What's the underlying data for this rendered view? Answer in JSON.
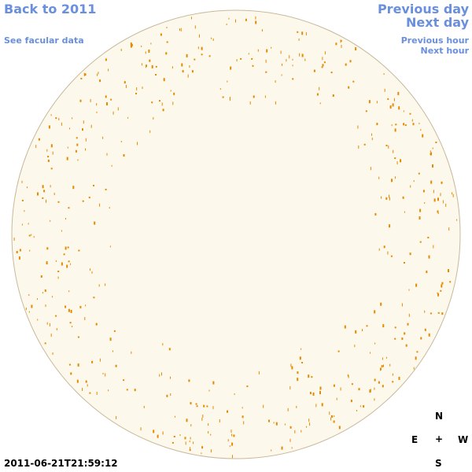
{
  "navigation": {
    "back": "Back to 2011",
    "facular": "See facular data",
    "previous_day": "Previous day",
    "next_day": "Next day",
    "previous_hour": "Previous hour",
    "next_hour": "Next hour"
  },
  "timestamp": "2011-06-21T21:59:12",
  "compass": {
    "north": "N",
    "east": "E",
    "center": "+",
    "west": "W",
    "south": "S"
  }
}
